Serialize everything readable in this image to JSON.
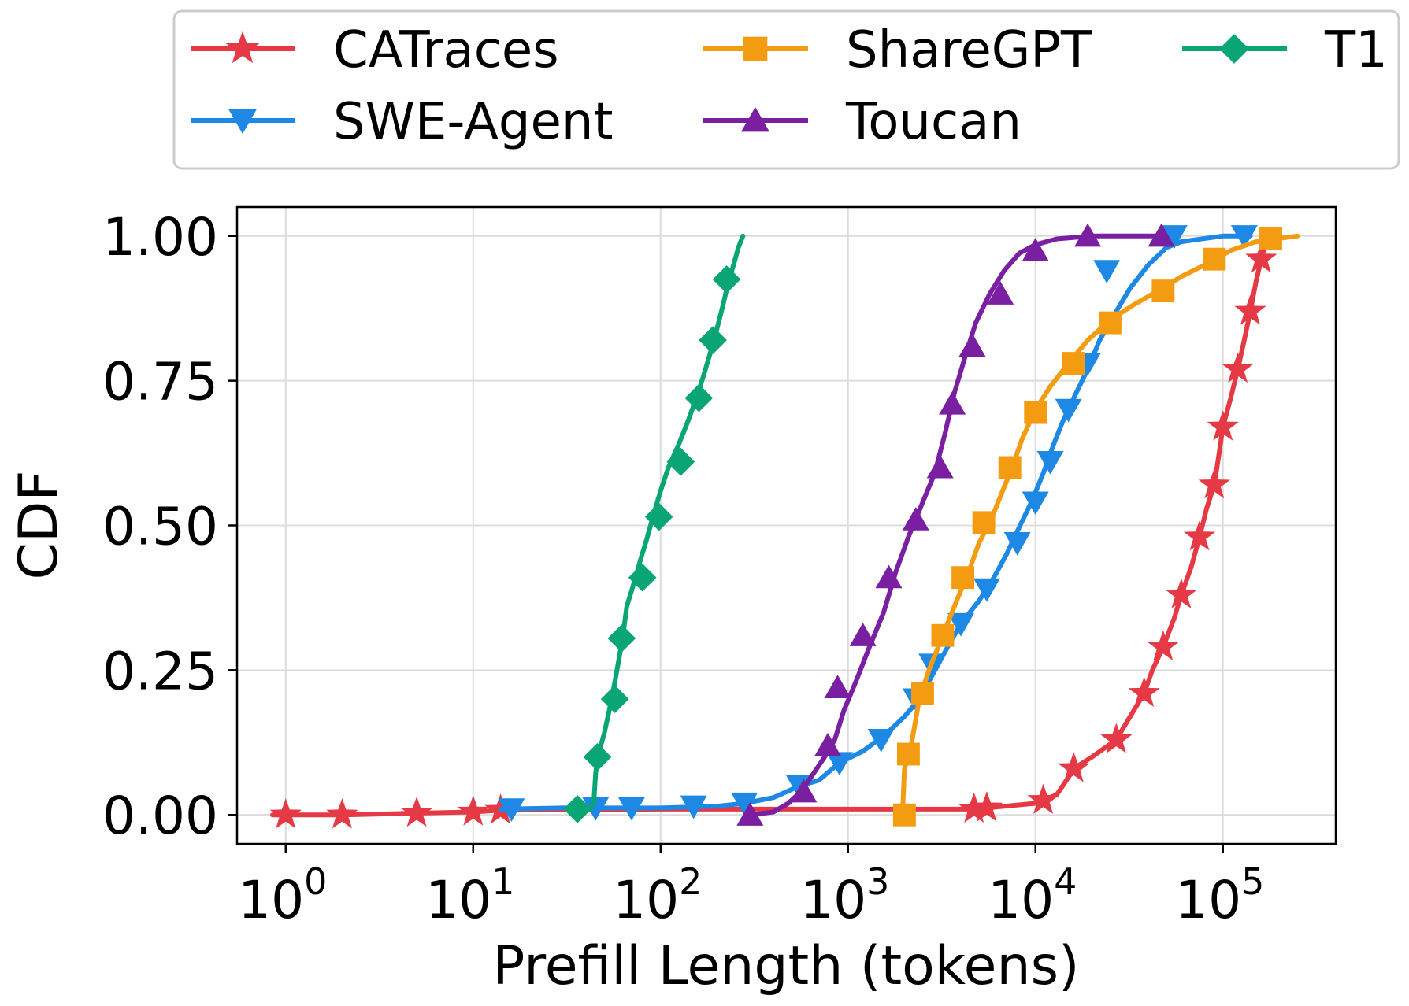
{
  "chart_data": {
    "type": "line",
    "title": "",
    "xlabel": "Prefill Length (tokens)",
    "ylabel": "CDF",
    "xscale": "log",
    "xlim": [
      0.55,
      400000
    ],
    "ylim": [
      -0.05,
      1.05
    ],
    "grid": true,
    "legend_position": "above plot, 3 columns",
    "x_ticks": [
      {
        "value": 1,
        "base": "10",
        "exp": "0"
      },
      {
        "value": 10,
        "base": "10",
        "exp": "1"
      },
      {
        "value": 100,
        "base": "10",
        "exp": "2"
      },
      {
        "value": 1000,
        "base": "10",
        "exp": "3"
      },
      {
        "value": 10000,
        "base": "10",
        "exp": "4"
      },
      {
        "value": 100000,
        "base": "10",
        "exp": "5"
      }
    ],
    "y_ticks": [
      {
        "value": 0.0,
        "label": "0.00"
      },
      {
        "value": 0.25,
        "label": "0.25"
      },
      {
        "value": 0.5,
        "label": "0.50"
      },
      {
        "value": 0.75,
        "label": "0.75"
      },
      {
        "value": 1.0,
        "label": "1.00"
      }
    ],
    "series": [
      {
        "name": "CATraces",
        "color": "#e63946",
        "marker": "star",
        "points": [
          [
            0.85,
            0.0
          ],
          [
            1,
            0.0
          ],
          [
            2,
            0.0
          ],
          [
            5,
            0.003
          ],
          [
            10,
            0.005
          ],
          [
            14,
            0.008
          ],
          [
            100,
            0.01
          ],
          [
            1000,
            0.01
          ],
          [
            5000,
            0.01
          ],
          [
            5500,
            0.012
          ],
          [
            10000,
            0.02
          ],
          [
            11000,
            0.025
          ],
          [
            13000,
            0.035
          ],
          [
            15000,
            0.065
          ],
          [
            16000,
            0.08
          ],
          [
            20000,
            0.1
          ],
          [
            27000,
            0.13
          ],
          [
            32000,
            0.17
          ],
          [
            38000,
            0.21
          ],
          [
            42000,
            0.25
          ],
          [
            48000,
            0.29
          ],
          [
            55000,
            0.34
          ],
          [
            60000,
            0.38
          ],
          [
            68000,
            0.43
          ],
          [
            75000,
            0.48
          ],
          [
            82000,
            0.53
          ],
          [
            90000,
            0.57
          ],
          [
            95000,
            0.62
          ],
          [
            100000,
            0.67
          ],
          [
            110000,
            0.72
          ],
          [
            120000,
            0.77
          ],
          [
            130000,
            0.82
          ],
          [
            140000,
            0.87
          ],
          [
            150000,
            0.92
          ],
          [
            160000,
            0.96
          ],
          [
            170000,
            0.99
          ]
        ],
        "markers": [
          [
            1,
            0.0
          ],
          [
            2,
            0.0
          ],
          [
            5,
            0.003
          ],
          [
            10,
            0.005
          ],
          [
            14,
            0.008
          ],
          [
            4700,
            0.01
          ],
          [
            5500,
            0.012
          ],
          [
            11000,
            0.025
          ],
          [
            16000,
            0.08
          ],
          [
            27000,
            0.13
          ],
          [
            38000,
            0.21
          ],
          [
            48000,
            0.29
          ],
          [
            60000,
            0.38
          ],
          [
            75000,
            0.48
          ],
          [
            90000,
            0.57
          ],
          [
            100000,
            0.67
          ],
          [
            120000,
            0.77
          ],
          [
            140000,
            0.87
          ],
          [
            160000,
            0.96
          ]
        ]
      },
      {
        "name": "SWE-Agent",
        "color": "#1e88e5",
        "marker": "triangle-down",
        "points": [
          [
            14,
            0.01
          ],
          [
            30,
            0.012
          ],
          [
            100,
            0.012
          ],
          [
            200,
            0.015
          ],
          [
            280,
            0.02
          ],
          [
            400,
            0.03
          ],
          [
            550,
            0.05
          ],
          [
            700,
            0.06
          ],
          [
            900,
            0.09
          ],
          [
            1200,
            0.11
          ],
          [
            1600,
            0.14
          ],
          [
            2000,
            0.17
          ],
          [
            2400,
            0.2
          ],
          [
            2800,
            0.24
          ],
          [
            3400,
            0.29
          ],
          [
            4000,
            0.33
          ],
          [
            5000,
            0.37
          ],
          [
            6000,
            0.41
          ],
          [
            7000,
            0.45
          ],
          [
            8000,
            0.49
          ],
          [
            9500,
            0.54
          ],
          [
            11000,
            0.59
          ],
          [
            12500,
            0.64
          ],
          [
            14000,
            0.68
          ],
          [
            16000,
            0.72
          ],
          [
            19000,
            0.77
          ],
          [
            22000,
            0.82
          ],
          [
            27000,
            0.87
          ],
          [
            32000,
            0.91
          ],
          [
            40000,
            0.95
          ],
          [
            50000,
            0.98
          ],
          [
            60000,
            0.99
          ],
          [
            100000,
            1.0
          ],
          [
            140000,
            1.0
          ]
        ],
        "markers": [
          [
            16,
            0.01
          ],
          [
            45,
            0.012
          ],
          [
            70,
            0.012
          ],
          [
            150,
            0.015
          ],
          [
            280,
            0.02
          ],
          [
            550,
            0.05
          ],
          [
            900,
            0.09
          ],
          [
            1500,
            0.13
          ],
          [
            2300,
            0.2
          ],
          [
            2800,
            0.26
          ],
          [
            4000,
            0.33
          ],
          [
            5500,
            0.39
          ],
          [
            8000,
            0.47
          ],
          [
            10000,
            0.54
          ],
          [
            12000,
            0.61
          ],
          [
            15000,
            0.7
          ],
          [
            19000,
            0.78
          ],
          [
            24000,
            0.94
          ],
          [
            55000,
            1.0
          ],
          [
            130000,
            1.0
          ]
        ]
      },
      {
        "name": "ShareGPT",
        "color": "#f39c12",
        "marker": "square",
        "points": [
          [
            1950,
            0.0
          ],
          [
            2000,
            0.08
          ],
          [
            2100,
            0.1
          ],
          [
            2200,
            0.13
          ],
          [
            2400,
            0.2
          ],
          [
            2700,
            0.25
          ],
          [
            3200,
            0.31
          ],
          [
            3800,
            0.37
          ],
          [
            4400,
            0.42
          ],
          [
            5000,
            0.47
          ],
          [
            5800,
            0.51
          ],
          [
            6500,
            0.55
          ],
          [
            7500,
            0.6
          ],
          [
            8500,
            0.65
          ],
          [
            10000,
            0.7
          ],
          [
            12000,
            0.74
          ],
          [
            15000,
            0.78
          ],
          [
            19000,
            0.82
          ],
          [
            25000,
            0.855
          ],
          [
            33000,
            0.88
          ],
          [
            45000,
            0.905
          ],
          [
            60000,
            0.93
          ],
          [
            80000,
            0.95
          ],
          [
            110000,
            0.975
          ],
          [
            150000,
            0.99
          ],
          [
            190000,
            0.995
          ],
          [
            250000,
            1.0
          ]
        ],
        "markers": [
          [
            2000,
            0.0
          ],
          [
            2100,
            0.105
          ],
          [
            2500,
            0.21
          ],
          [
            3200,
            0.31
          ],
          [
            4100,
            0.41
          ],
          [
            5300,
            0.505
          ],
          [
            7300,
            0.6
          ],
          [
            10000,
            0.695
          ],
          [
            16000,
            0.78
          ],
          [
            25000,
            0.85
          ],
          [
            48000,
            0.905
          ],
          [
            90000,
            0.96
          ],
          [
            180000,
            0.995
          ]
        ]
      },
      {
        "name": "Toucan",
        "color": "#7b1fa2",
        "marker": "triangle-up",
        "points": [
          [
            300,
            0.0
          ],
          [
            400,
            0.005
          ],
          [
            480,
            0.02
          ],
          [
            560,
            0.04
          ],
          [
            650,
            0.07
          ],
          [
            750,
            0.1
          ],
          [
            850,
            0.13
          ],
          [
            950,
            0.18
          ],
          [
            1100,
            0.23
          ],
          [
            1300,
            0.29
          ],
          [
            1550,
            0.35
          ],
          [
            1800,
            0.42
          ],
          [
            2100,
            0.48
          ],
          [
            2500,
            0.54
          ],
          [
            2900,
            0.59
          ],
          [
            3300,
            0.66
          ],
          [
            3700,
            0.73
          ],
          [
            4200,
            0.79
          ],
          [
            4800,
            0.85
          ],
          [
            5700,
            0.9
          ],
          [
            6800,
            0.94
          ],
          [
            8200,
            0.97
          ],
          [
            10000,
            0.985
          ],
          [
            13000,
            0.995
          ],
          [
            20000,
            1.0
          ],
          [
            48000,
            1.0
          ]
        ],
        "markers": [
          [
            300,
            0.0
          ],
          [
            580,
            0.04
          ],
          [
            780,
            0.12
          ],
          [
            880,
            0.22
          ],
          [
            1200,
            0.31
          ],
          [
            1650,
            0.41
          ],
          [
            2300,
            0.51
          ],
          [
            3100,
            0.6
          ],
          [
            3600,
            0.71
          ],
          [
            4600,
            0.81
          ],
          [
            6500,
            0.9
          ],
          [
            10000,
            0.975
          ],
          [
            19000,
            1.0
          ],
          [
            47000,
            1.0
          ]
        ]
      },
      {
        "name": "T1",
        "color": "#0aa574",
        "marker": "diamond",
        "points": [
          [
            36,
            0.01
          ],
          [
            42,
            0.01
          ],
          [
            44,
            0.02
          ],
          [
            45,
            0.07
          ],
          [
            46,
            0.1
          ],
          [
            50,
            0.14
          ],
          [
            54,
            0.19
          ],
          [
            57,
            0.23
          ],
          [
            60,
            0.27
          ],
          [
            63,
            0.31
          ],
          [
            66,
            0.36
          ],
          [
            72,
            0.4
          ],
          [
            78,
            0.44
          ],
          [
            85,
            0.48
          ],
          [
            92,
            0.52
          ],
          [
            100,
            0.56
          ],
          [
            110,
            0.6
          ],
          [
            125,
            0.64
          ],
          [
            140,
            0.68
          ],
          [
            155,
            0.72
          ],
          [
            170,
            0.76
          ],
          [
            185,
            0.8
          ],
          [
            200,
            0.84
          ],
          [
            215,
            0.88
          ],
          [
            230,
            0.92
          ],
          [
            245,
            0.95
          ],
          [
            260,
            0.98
          ],
          [
            275,
            1.0
          ]
        ],
        "markers": [
          [
            36,
            0.01
          ],
          [
            46,
            0.1
          ],
          [
            57,
            0.2
          ],
          [
            62,
            0.305
          ],
          [
            80,
            0.41
          ],
          [
            98,
            0.515
          ],
          [
            128,
            0.61
          ],
          [
            160,
            0.72
          ],
          [
            190,
            0.82
          ],
          [
            225,
            0.925
          ]
        ]
      }
    ]
  }
}
